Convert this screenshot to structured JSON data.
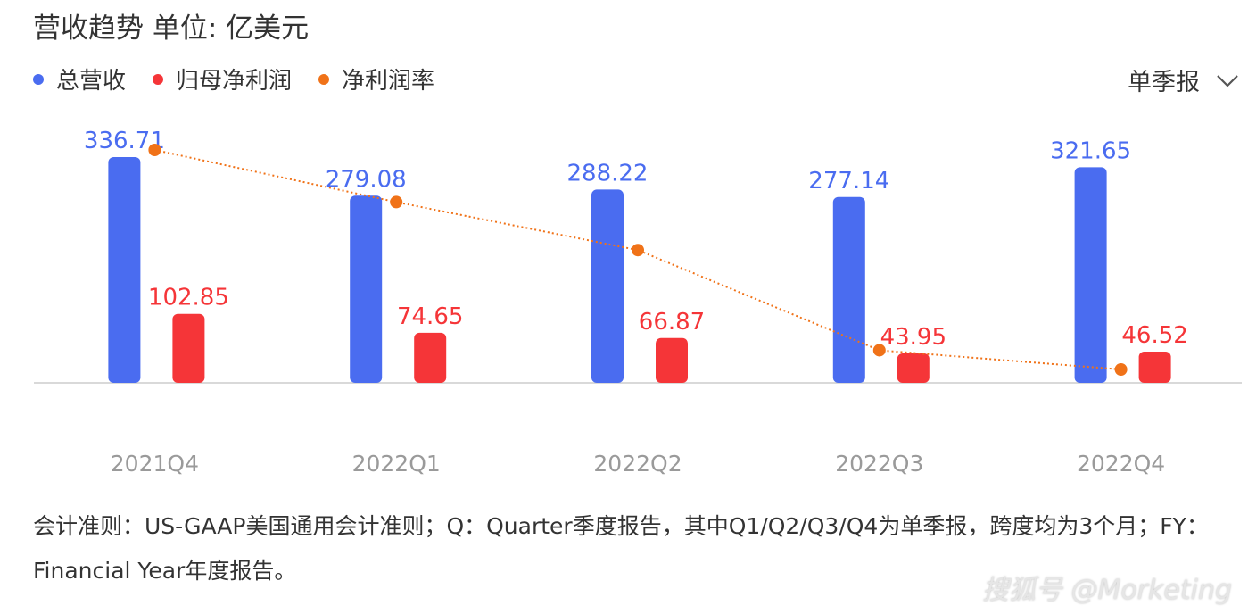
{
  "title": "营收趋势  单位: 亿美元",
  "legend": [
    {
      "label": "总营收",
      "color": "#4a6cf0"
    },
    {
      "label": "归母净利润",
      "color": "#f53538"
    },
    {
      "label": "净利润率",
      "color": "#f07218"
    }
  ],
  "dropdown": {
    "label": "单季报",
    "icon": "chevron-down-icon"
  },
  "chart_data": {
    "type": "bar",
    "categories": [
      "2021Q4",
      "2022Q1",
      "2022Q2",
      "2022Q3",
      "2022Q4"
    ],
    "series": [
      {
        "name": "总营收",
        "type": "bar",
        "color": "#4a6cf0",
        "values": [
          336.71,
          279.08,
          288.22,
          277.14,
          321.65
        ]
      },
      {
        "name": "归母净利润",
        "type": "bar",
        "color": "#f53538",
        "values": [
          102.85,
          74.65,
          66.87,
          43.95,
          46.52
        ]
      },
      {
        "name": "净利润率",
        "type": "line",
        "style": "dotted",
        "color": "#f07218",
        "values": [
          30.5,
          26.7,
          23.2,
          15.9,
          14.5
        ]
      }
    ],
    "ylim": [
      0,
      350
    ],
    "grid": false,
    "legend_position": "top-left"
  },
  "footnote": "会计准则：US-GAAP美国通用会计准则；Q：Quarter季度报告，其中Q1/Q2/Q3/Q4为单季报，跨度均为3个月；FY：Financial Year年度报告。",
  "watermark": "搜狐号 @Morketing"
}
